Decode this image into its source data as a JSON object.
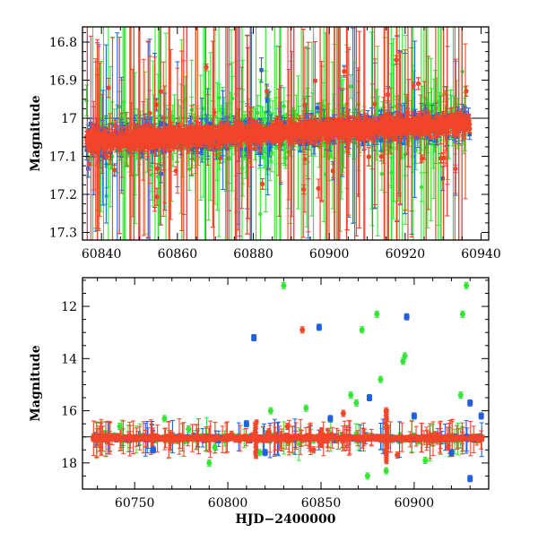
{
  "chart_data": [
    {
      "type": "scatter",
      "title": "",
      "xlabel": "",
      "ylabel": "Magnitude",
      "xlim": [
        60835,
        60942
      ],
      "ylim": [
        17.32,
        16.76
      ],
      "y_inverted": true,
      "grid": false,
      "error_bars": true,
      "xticks": [
        60840,
        60860,
        60880,
        60900,
        60920,
        60940
      ],
      "xtick_labels": [
        "60840",
        "60860",
        "60880",
        "60900",
        "60920",
        "60940"
      ],
      "yticks": [
        16.8,
        16.9,
        17,
        17.1,
        17.2,
        17.3
      ],
      "ytick_labels": [
        "16.8",
        "16.9",
        "17",
        "17.1",
        "17.2",
        "17.3"
      ],
      "reference_line": 17.0,
      "series": [
        {
          "color": "#33e633",
          "marker": "circle",
          "x_range": [
            60836,
            60936
          ],
          "typical_mag": 17.03,
          "typical_error": 0.04
        },
        {
          "color": "#1f5fe0",
          "marker": "square",
          "x_range": [
            60836,
            60937
          ],
          "typical_mag": 17.04,
          "typical_error": 0.02
        },
        {
          "color": "#f2452a",
          "marker": "circle",
          "x_range": [
            60836,
            60937
          ],
          "typical_mag": 17.05,
          "typical_error": 0.015
        }
      ]
    },
    {
      "type": "scatter",
      "title": "",
      "xlabel": "HJD−2400000",
      "ylabel": "Magnitude",
      "xlim": [
        60722,
        60940
      ],
      "ylim": [
        19.0,
        10.9
      ],
      "y_inverted": true,
      "grid": false,
      "error_bars": true,
      "xticks": [
        60750,
        60800,
        60850,
        60900
      ],
      "xtick_labels": [
        "60750",
        "60800",
        "60850",
        "60900"
      ],
      "yticks": [
        12,
        14,
        16,
        18
      ],
      "ytick_labels": [
        "12",
        "14",
        "16",
        "18"
      ],
      "reference_line": 17.0,
      "series": [
        {
          "color": "#33e633",
          "marker": "circle",
          "outliers": [
            [
              60830,
              11.2
            ],
            [
              60928,
              11.2
            ],
            [
              60880,
              12.3
            ],
            [
              60926,
              12.3
            ],
            [
              60872,
              12.9
            ],
            [
              60895,
              13.9
            ],
            [
              60894,
              14.1
            ],
            [
              60882,
              14.8
            ],
            [
              60866,
              15.4
            ],
            [
              60869,
              15.7
            ],
            [
              60925,
              15.4
            ],
            [
              60842,
              15.9
            ],
            [
              60823,
              16.0
            ],
            [
              60779,
              16.7
            ],
            [
              60793,
              17.4
            ],
            [
              60790,
              18.0
            ],
            [
              60875,
              18.5
            ],
            [
              60885,
              18.3
            ],
            [
              60817,
              17.6
            ],
            [
              60906,
              17.9
            ],
            [
              60742,
              16.6
            ],
            [
              60766,
              16.3
            ]
          ]
        },
        {
          "color": "#1f5fe0",
          "marker": "square",
          "outliers": [
            [
              60814,
              13.2
            ],
            [
              60849,
              12.8
            ],
            [
              60896,
              12.4
            ],
            [
              60876,
              15.5
            ],
            [
              60930,
              15.7
            ],
            [
              60930,
              18.6
            ],
            [
              60810,
              16.5
            ],
            [
              60855,
              16.3
            ],
            [
              60900,
              16.2
            ],
            [
              60936,
              16.2
            ],
            [
              60760,
              17.5
            ],
            [
              60820,
              17.6
            ],
            [
              60920,
              17.6
            ]
          ]
        },
        {
          "color": "#f2452a",
          "marker": "circle",
          "outliers": [
            [
              60840,
              12.9
            ],
            [
              60862,
              16.1
            ],
            [
              60832,
              16.6
            ],
            [
              60822,
              16.8
            ],
            [
              60802,
              16.9
            ],
            [
              60885,
              16.0
            ],
            [
              60891,
              17.7
            ],
            [
              60846,
              17.5
            ],
            [
              60918,
              17.4
            ]
          ]
        }
      ]
    }
  ]
}
